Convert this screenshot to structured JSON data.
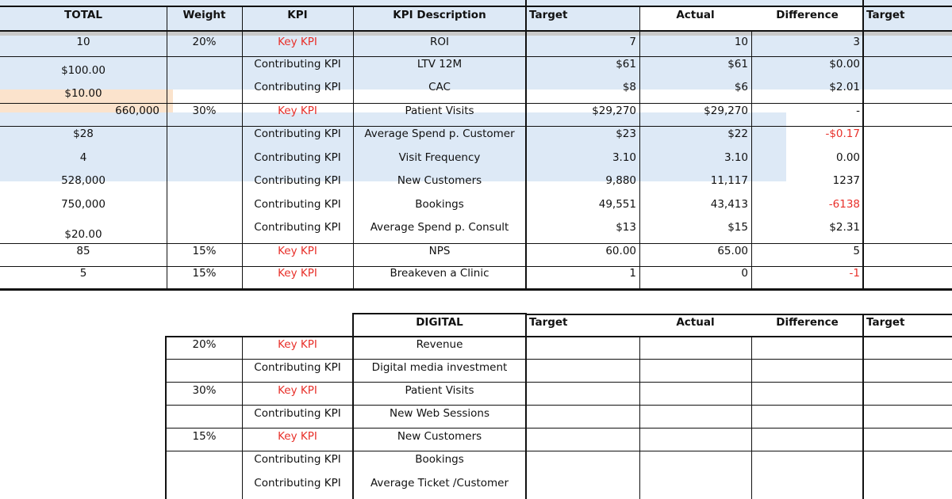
{
  "top_table": {
    "headers": [
      "TOTAL",
      "Weight",
      "KPI",
      "KPI Description",
      "Target",
      "Actual",
      "Difference",
      "Target"
    ],
    "rows": [
      {
        "total": "10",
        "weight": "20%",
        "kpi": "Key KPI",
        "desc": "ROI",
        "target": "7",
        "actual": "10",
        "diff": "3",
        "key": true
      },
      {
        "total": "$100.00",
        "weight": "",
        "kpi": "Contributing KPI",
        "desc": "LTV 12M",
        "target": "$61",
        "actual": "$61",
        "diff": "$0.00"
      },
      {
        "total": "$10.00",
        "weight": "",
        "kpi": "Contributing KPI",
        "desc": "CAC",
        "target": "$8",
        "actual": "$6",
        "diff": "$2.01"
      },
      {
        "total": "660,000",
        "weight": "30%",
        "kpi": "Key KPI",
        "desc": "Patient Visits",
        "target": "$29,270",
        "actual": "$29,270",
        "diff": "-",
        "key": true
      },
      {
        "total": "$28",
        "weight": "",
        "kpi": "Contributing KPI",
        "desc": "Average Spend p. Customer",
        "target": "$23",
        "actual": "$22",
        "diff": "-$0.17",
        "diff_negative": true
      },
      {
        "total": "4",
        "weight": "",
        "kpi": "Contributing KPI",
        "desc": "Visit Frequency",
        "target": "3.10",
        "actual": "3.10",
        "diff": "0.00"
      },
      {
        "total": "528,000",
        "weight": "",
        "kpi": "Contributing KPI",
        "desc": "New Customers",
        "target": "9,880",
        "actual": "11,117",
        "diff": "1237"
      },
      {
        "total": "750,000",
        "weight": "",
        "kpi": "Contributing KPI",
        "desc": "Bookings",
        "target": "49,551",
        "actual": "43,413",
        "diff": "-6138",
        "diff_negative": true
      },
      {
        "total": "$20.00",
        "weight": "",
        "kpi": "Contributing KPI",
        "desc": "Average Spend p. Consult",
        "target": "$13",
        "actual": "$15",
        "diff": "$2.31"
      },
      {
        "total": "85",
        "weight": "15%",
        "kpi": "Key KPI",
        "desc": "NPS",
        "target": "60.00",
        "actual": "65.00",
        "diff": "5",
        "key": true
      },
      {
        "total": "5",
        "weight": "15%",
        "kpi": "Key KPI",
        "desc": "Breakeven a Clinic",
        "target": "1",
        "actual": "0",
        "diff": "-1",
        "diff_negative": true,
        "key": true
      }
    ]
  },
  "digital_table": {
    "title": "DIGITAL",
    "headers": [
      "Target",
      "Actual",
      "Difference",
      "Target"
    ],
    "rows": [
      {
        "weight": "20%",
        "kpi": "Key KPI",
        "desc": "Revenue",
        "key": true
      },
      {
        "weight": "",
        "kpi": "Contributing KPI",
        "desc": "Digital media investment"
      },
      {
        "weight": "30%",
        "kpi": "Key KPI",
        "desc": "Patient Visits",
        "key": true
      },
      {
        "weight": "",
        "kpi": "Contributing KPI",
        "desc": "New Web Sessions"
      },
      {
        "weight": "15%",
        "kpi": "Key KPI",
        "desc": "New Customers",
        "key": true
      },
      {
        "weight": "",
        "kpi": "Contributing KPI",
        "desc": "Bookings"
      },
      {
        "weight": "",
        "kpi": "Contributing KPI",
        "desc": "Average Ticket /Customer"
      }
    ]
  },
  "colors": {
    "key_kpi_text": "#e8302a",
    "key_row_fill": "#dde9f6",
    "digital_header_fill": "#fbe3cc"
  }
}
